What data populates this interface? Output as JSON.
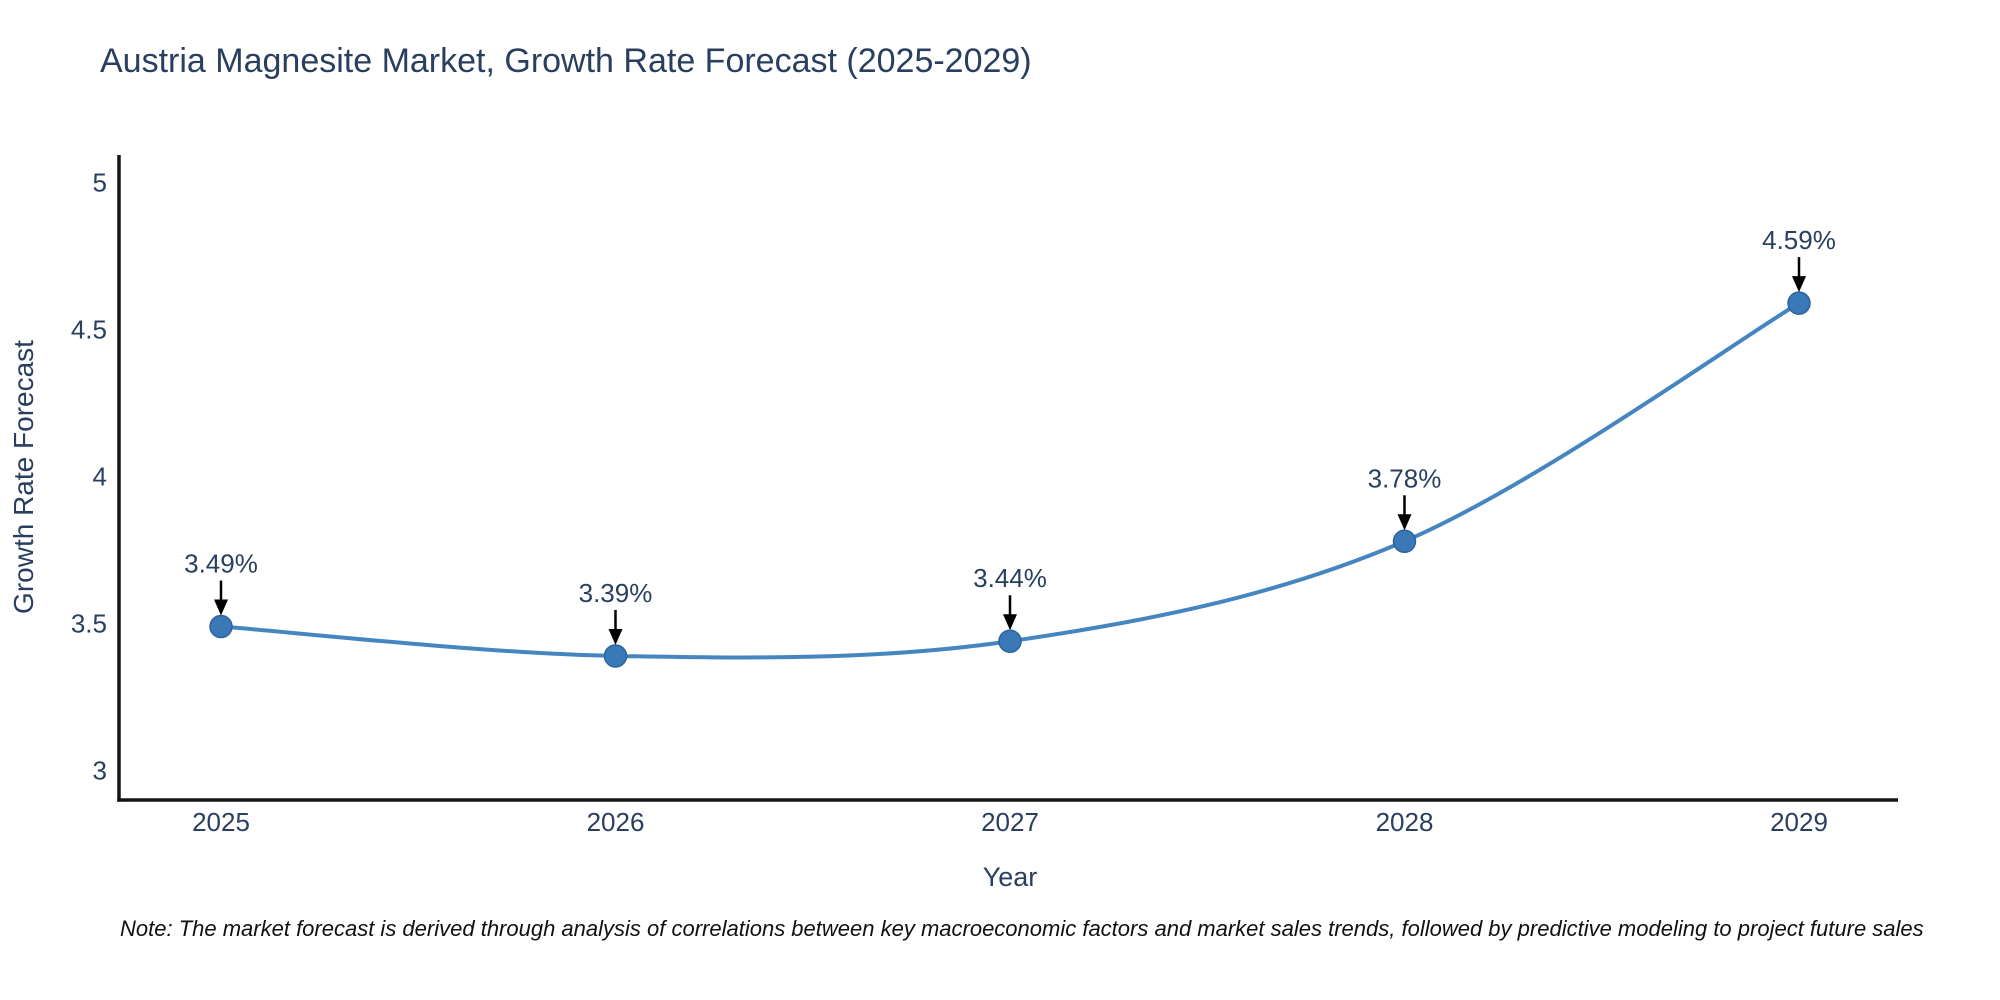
{
  "chart_data": {
    "type": "line",
    "title": "Austria Magnesite Market, Growth Rate Forecast (2025-2029)",
    "xlabel": "Year",
    "ylabel": "Growth Rate Forecast",
    "x": [
      2025,
      2026,
      2027,
      2028,
      2029
    ],
    "y": [
      3.49,
      3.39,
      3.44,
      3.78,
      4.59
    ],
    "point_labels": [
      "3.49%",
      "3.39%",
      "3.44%",
      "3.78%",
      "4.59%"
    ],
    "yticks": [
      3,
      3.5,
      4,
      4.5,
      5
    ],
    "ytick_labels": [
      "3",
      "3.5",
      "4",
      "4.5",
      "5"
    ],
    "xtick_labels": [
      "2025",
      "2026",
      "2027",
      "2028",
      "2029"
    ],
    "ylim": [
      2.9,
      5.09
    ],
    "grid": "off",
    "legend": "none",
    "line_shape": "spline",
    "colors": {
      "line": "#4586C1",
      "marker_fill": "#3A78B8",
      "marker_stroke": "#2D639E",
      "axis": "#151515",
      "text": "#2A3F5F",
      "arrow": "#000000"
    },
    "note": "Note: The market forecast is derived through analysis of correlations between key macroeconomic factors and market sales trends, followed by predictive modeling to project future sales"
  }
}
